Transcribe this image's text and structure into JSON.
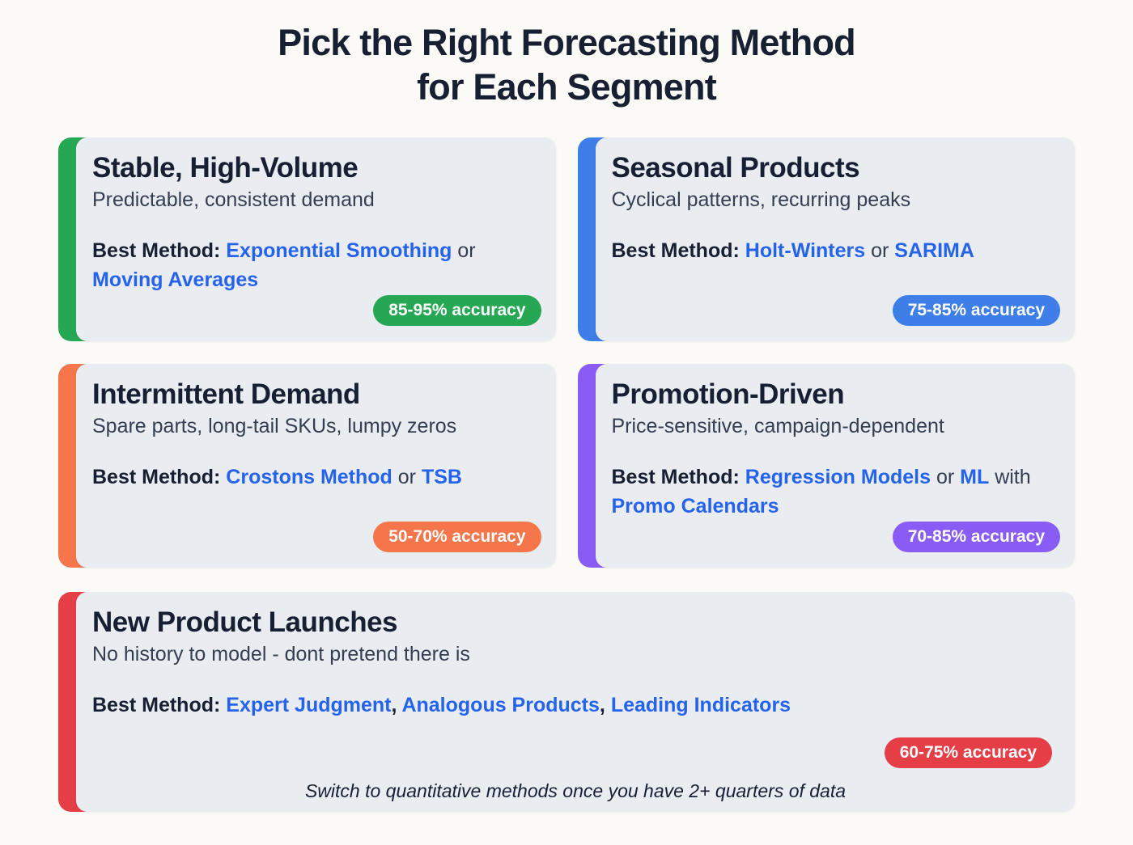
{
  "title": {
    "line1": "Pick the Right Forecasting Method",
    "line2": "for Each Segment"
  },
  "palette": {
    "page_bg": "#fbfaf6",
    "card_bg": "#e9edf2",
    "navy": "#172033",
    "slate": "#333e50",
    "method_blue": "#2563eb"
  },
  "cards": [
    {
      "title": "Stable, High-Volume",
      "subtitle": "Predictable, consistent demand",
      "method_label": "Best Method: ",
      "methods": [
        "Exponential Smoothing",
        "Moving Averages"
      ],
      "connectors": [
        " or "
      ],
      "badge": "85-95% accuracy",
      "accent_color": "#25a754"
    },
    {
      "title": "Seasonal Products",
      "subtitle": "Cyclical patterns, recurring peaks",
      "method_label": "Best Method: ",
      "methods": [
        "Holt-Winters",
        "SARIMA"
      ],
      "connectors": [
        " or "
      ],
      "badge": "75-85% accuracy",
      "accent_color": "#3d7ee9"
    },
    {
      "title": "Intermittent Demand",
      "subtitle": "Spare parts, long-tail SKUs, lumpy zeros",
      "method_label": "Best Method: ",
      "methods": [
        "Crostons Method",
        "TSB"
      ],
      "connectors": [
        " or "
      ],
      "badge": "50-70% accuracy",
      "accent_color": "#f4764a"
    },
    {
      "title": "Promotion-Driven",
      "subtitle": "Price-sensitive, campaign-dependent",
      "method_label": "Best Method: ",
      "methods": [
        "Regression Models",
        "ML",
        "Promo Calendars"
      ],
      "connectors": [
        " or ",
        " with "
      ],
      "badge": "70-85% accuracy",
      "accent_color": "#8a5cf6"
    },
    {
      "title": "New Product Launches",
      "subtitle": "No history to model - dont pretend there is",
      "method_label": "Best Method: ",
      "methods": [
        "Expert Judgment",
        "Analogous Products",
        "Leading Indicators"
      ],
      "separators": [
        ", ",
        ", "
      ],
      "badge": "60-75% accuracy",
      "accent_color": "#e63e46",
      "footer_note": "Switch to quantitative methods once you have 2+ quarters of data"
    }
  ]
}
